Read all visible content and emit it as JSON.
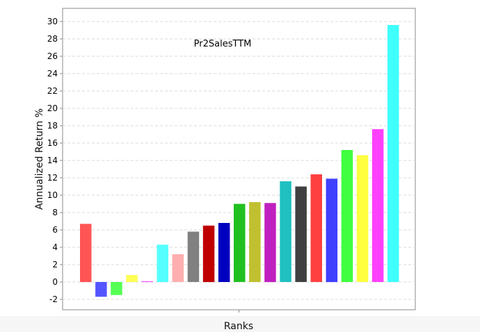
{
  "chart_data": {
    "type": "bar",
    "title": "Pr2SalesTTM",
    "xlabel": "Ranks",
    "ylabel": "Annualized Return %",
    "ylim": [
      -3,
      31
    ],
    "yticks": [
      -2,
      0,
      2,
      4,
      6,
      8,
      10,
      12,
      14,
      16,
      18,
      20,
      22,
      24,
      26,
      28,
      30
    ],
    "grid": true,
    "values": [
      6.7,
      -1.7,
      -1.5,
      0.8,
      0.1,
      4.3,
      3.2,
      5.8,
      6.5,
      6.8,
      9.0,
      9.2,
      9.1,
      11.6,
      11.0,
      12.4,
      11.9,
      15.2,
      14.6,
      17.6,
      29.6
    ],
    "colors": [
      "#ff5555",
      "#5555ff",
      "#55ff55",
      "#ffff55",
      "#ff55ff",
      "#55ffff",
      "#ffafaf",
      "#808080",
      "#c00000",
      "#0000c0",
      "#20c020",
      "#c0c030",
      "#c020c0",
      "#20c0c0",
      "#404040",
      "#ff4040",
      "#4040ff",
      "#40ff40",
      "#ffff40",
      "#ff40ff",
      "#40ffff"
    ]
  }
}
